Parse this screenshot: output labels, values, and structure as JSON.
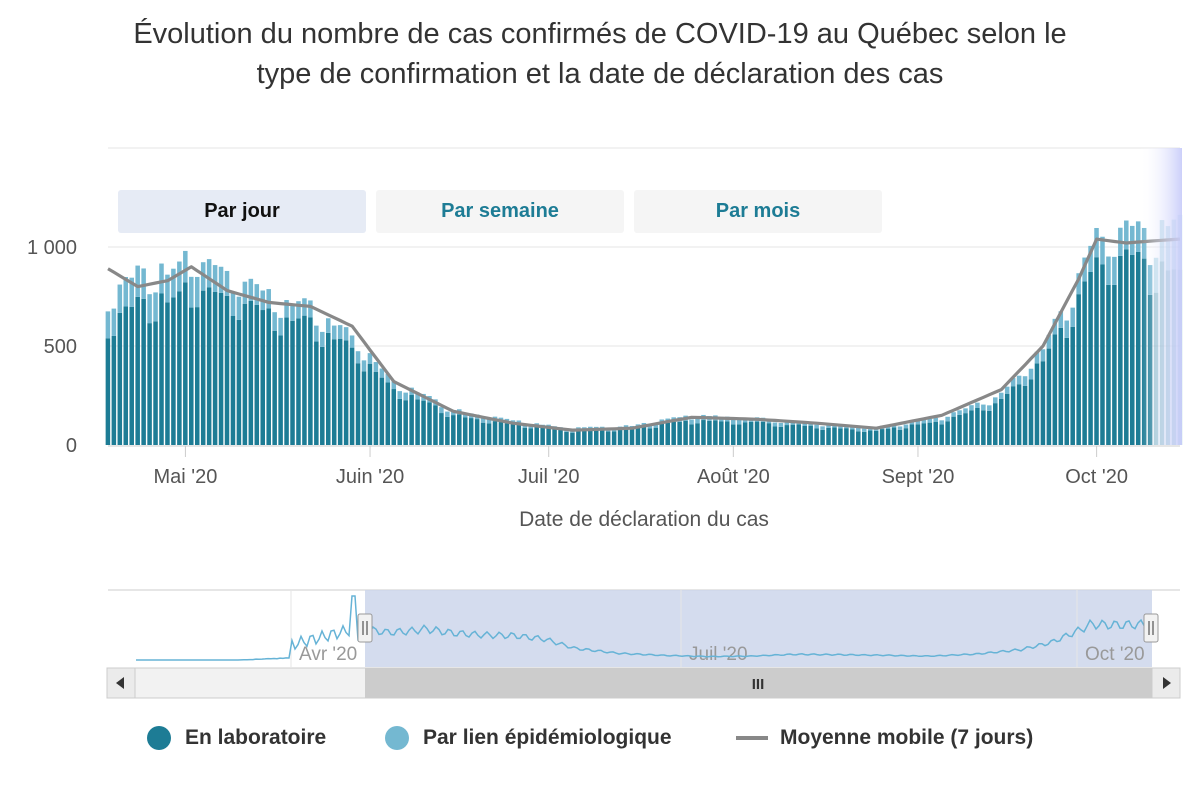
{
  "title_lines": [
    "Évolution du nombre de cas confirmés de COVID-19 au Québec selon le",
    "type de confirmation et la date de déclaration des cas"
  ],
  "range_selector": [
    {
      "label": "Par jour",
      "selected": true
    },
    {
      "label": "Par semaine",
      "selected": false
    },
    {
      "label": "Par mois",
      "selected": false
    }
  ],
  "legend": [
    {
      "label": "En laboratoire",
      "color": "#1d7c95",
      "symbol": "circle"
    },
    {
      "label": "Par lien épidémiologique",
      "color": "#74b8d1",
      "symbol": "circle"
    },
    {
      "label": "Moyenne mobile (7 jours)",
      "color": "#888888",
      "symbol": "line"
    }
  ],
  "navigator": {
    "tick_labels": [
      "Avr '20",
      "Juil '20",
      "Oct '20"
    ],
    "scrollbar_grip": "III"
  },
  "chart_data": {
    "type": "bar",
    "stacked": true,
    "title": "Évolution du nombre de cas confirmés de COVID-19 au Québec selon le type de confirmation et la date de déclaration des cas",
    "xlabel": "Date de déclaration du cas",
    "ylabel": "",
    "x_range": [
      "2020-04-18",
      "2020-10-15"
    ],
    "ylim": [
      0,
      1500
    ],
    "yticks": [
      0,
      500,
      1000
    ],
    "ytick_labels": [
      "0",
      "500",
      "1 000"
    ],
    "xtick_labels": [
      {
        "date": "2020-05-01",
        "label": "Mai '20"
      },
      {
        "date": "2020-06-01",
        "label": "Juin '20"
      },
      {
        "date": "2020-07-01",
        "label": "Juil '20"
      },
      {
        "date": "2020-08-01",
        "label": "Août '20"
      },
      {
        "date": "2020-09-01",
        "label": "Sept '20"
      },
      {
        "date": "2020-10-01",
        "label": "Oct '20"
      }
    ],
    "series_keyframes": {
      "comment_free": true,
      "dates": [
        "2020-04-18",
        "2020-04-23",
        "2020-04-28",
        "2020-05-02",
        "2020-05-08",
        "2020-05-15",
        "2020-05-22",
        "2020-05-29",
        "2020-06-05",
        "2020-06-15",
        "2020-06-25",
        "2020-07-05",
        "2020-07-15",
        "2020-07-25",
        "2020-08-05",
        "2020-08-15",
        "2020-08-25",
        "2020-09-05",
        "2020-09-15",
        "2020-09-22",
        "2020-09-28",
        "2020-10-01",
        "2020-10-06",
        "2020-10-10",
        "2020-10-15"
      ],
      "laboratoire": [
        600,
        710,
        720,
        780,
        720,
        640,
        600,
        480,
        280,
        150,
        100,
        70,
        80,
        120,
        110,
        90,
        70,
        120,
        220,
        420,
        720,
        900,
        950,
        880,
        830
      ],
      "lien_epidemiologique": [
        130,
        150,
        140,
        150,
        120,
        90,
        80,
        60,
        40,
        25,
        20,
        12,
        15,
        25,
        20,
        18,
        15,
        20,
        30,
        60,
        100,
        140,
        140,
        150,
        260
      ],
      "moyenne_mobile": [
        890,
        800,
        830,
        900,
        780,
        720,
        700,
        600,
        320,
        170,
        110,
        75,
        85,
        140,
        130,
        110,
        85,
        150,
        280,
        500,
        840,
        1040,
        1020,
        1030,
        1040
      ]
    }
  }
}
